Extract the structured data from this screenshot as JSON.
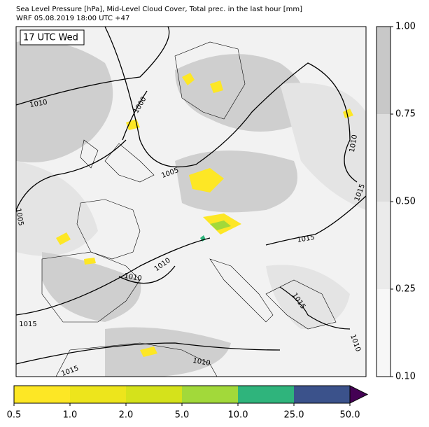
{
  "header": {
    "title": "Sea Level Pressure [hPa], Mid-Level Cloud Cover, Total prec. in the last hour [mm]",
    "subtitle": "WRF 05.08.2019 18:00 UTC +47"
  },
  "map": {
    "time_label": "17 UTC Wed",
    "isobar_labels": [
      "1010",
      "1000",
      "1005",
      "1005",
      "1010",
      "1010",
      "1015",
      "1010",
      "1010",
      "1015",
      "1015",
      "1015",
      "1010",
      "1015"
    ]
  },
  "cloud_colorbar": {
    "ticks": [
      {
        "value": 0.1,
        "label": "0.10"
      },
      {
        "value": 0.25,
        "label": "0.25"
      },
      {
        "value": 0.5,
        "label": "0.50"
      },
      {
        "value": 0.75,
        "label": "0.75"
      },
      {
        "value": 1.0,
        "label": "1.00"
      }
    ],
    "colors": [
      "#f7f7f7",
      "#ebebeb",
      "#dedede",
      "#c8c8c8"
    ]
  },
  "precip_colorbar": {
    "ticks": [
      {
        "value": 0.5,
        "label": "0.5"
      },
      {
        "value": 1,
        "label": "1.0"
      },
      {
        "value": 2,
        "label": "2.0"
      },
      {
        "value": 5,
        "label": "5.0"
      },
      {
        "value": 10,
        "label": "10.0"
      },
      {
        "value": 25,
        "label": "25.0"
      },
      {
        "value": 50,
        "label": "50.0"
      }
    ],
    "colors": [
      "#fde725",
      "#ede51c",
      "#d5e21b",
      "#a2d93a",
      "#2fb47c",
      "#3b528b",
      "#440154"
    ]
  }
}
